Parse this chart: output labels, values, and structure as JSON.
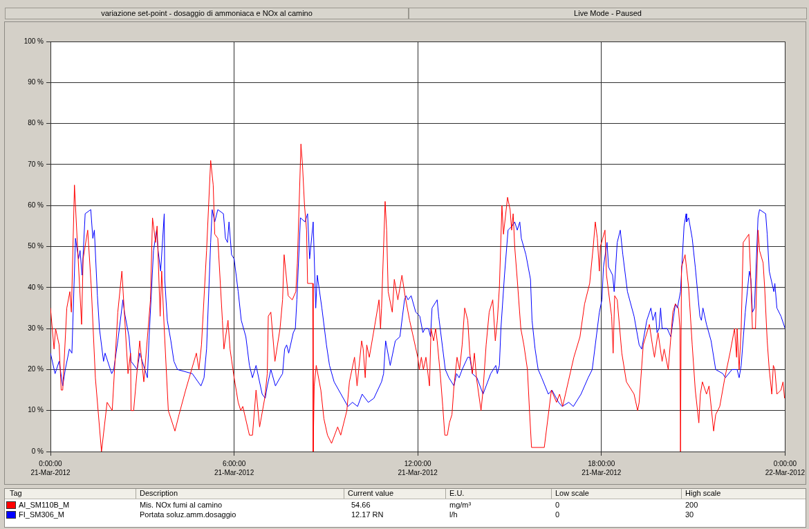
{
  "chart_data": {
    "type": "line",
    "title": "variazione set-point - dosaggio di ammoniaca e NOx al camino",
    "subtitle": "Live Mode - Paused",
    "xlim": [
      "2012-03-21T00:00",
      "2012-03-22T00:00"
    ],
    "xticks": [
      {
        "value": "2012-03-21T00:00",
        "label": "0:00:00\n21-Mar-2012"
      },
      {
        "value": "2012-03-21T06:00",
        "label": "6:00:00\n21-Mar-2012"
      },
      {
        "value": "2012-03-21T12:00",
        "label": "12:00:00\n21-Mar-2012"
      },
      {
        "value": "2012-03-21T18:00",
        "label": "18:00:00\n21-Mar-2012"
      },
      {
        "value": "2012-03-22T00:00",
        "label": "0:00:00\n22-Mar-2012"
      }
    ],
    "ylim": [
      0,
      100
    ],
    "yticks": [
      {
        "value": 0,
        "label": "0 %"
      },
      {
        "value": 10,
        "label": "10 %"
      },
      {
        "value": 20,
        "label": "20 %"
      },
      {
        "value": 30,
        "label": "30 %"
      },
      {
        "value": 40,
        "label": "40 %"
      },
      {
        "value": 50,
        "label": "50 %"
      },
      {
        "value": 60,
        "label": "60 %"
      },
      {
        "value": 70,
        "label": "70 %"
      },
      {
        "value": 80,
        "label": "80 %"
      },
      {
        "value": 90,
        "label": "90 %"
      },
      {
        "value": 100,
        "label": "100 %"
      }
    ],
    "grid": true,
    "legend": "bottom",
    "annotations": [
      "Tag",
      "Description",
      "Current value",
      "E.U.",
      "Low scale",
      "High scale",
      "Mis. NOx fumi al camino",
      "54.66",
      "mg/m³",
      "0",
      "200",
      "Portata soluz.amm.dosaggio",
      "12.17 RN",
      "l/h",
      "0",
      "30"
    ],
    "series": [
      {
        "name": "AI_SM110B_M",
        "color": "#ff0000",
        "x": [
          "2012-03-21T00:00",
          "2012-03-21T00:07",
          "2012-03-21T00:10",
          "2012-03-21T00:17",
          "2012-03-21T00:21",
          "2012-03-21T00:24",
          "2012-03-21T00:32",
          "2012-03-21T00:38",
          "2012-03-21T00:41",
          "2012-03-21T00:47",
          "2012-03-21T00:53",
          "2012-03-21T01:01",
          "2012-03-21T01:04",
          "2012-03-21T01:13",
          "2012-03-21T01:20",
          "2012-03-21T01:28",
          "2012-03-21T01:40",
          "2012-03-21T01:51",
          "2012-03-21T02:01",
          "2012-03-21T02:12",
          "2012-03-21T02:20",
          "2012-03-21T02:32",
          "2012-03-21T02:37",
          "2012-03-21T02:38",
          "2012-03-21T02:43",
          "2012-03-21T02:55",
          "2012-03-21T03:03",
          "2012-03-21T03:16",
          "2012-03-21T03:20",
          "2012-03-21T03:26",
          "2012-03-21T03:29",
          "2012-03-21T03:35",
          "2012-03-21T03:38",
          "2012-03-21T03:43",
          "2012-03-21T03:51",
          "2012-03-21T04:04",
          "2012-03-21T04:12",
          "2012-03-21T04:25",
          "2012-03-21T04:46",
          "2012-03-21T04:51",
          "2012-03-21T04:56",
          "2012-03-21T05:06",
          "2012-03-21T05:14",
          "2012-03-21T05:19",
          "2012-03-21T05:22",
          "2012-03-21T05:28",
          "2012-03-21T05:37",
          "2012-03-21T05:40",
          "2012-03-21T05:48",
          "2012-03-21T05:52",
          "2012-03-21T06:00",
          "2012-03-21T06:08",
          "2012-03-21T06:13",
          "2012-03-21T06:17",
          "2012-03-21T06:30",
          "2012-03-21T06:36",
          "2012-03-21T06:43",
          "2012-03-21T06:50",
          "2012-03-21T07:00",
          "2012-03-21T07:05",
          "2012-03-21T07:07",
          "2012-03-21T07:12",
          "2012-03-21T07:20",
          "2012-03-21T07:30",
          "2012-03-21T07:35",
          "2012-03-21T07:38",
          "2012-03-21T07:46",
          "2012-03-21T07:54",
          "2012-03-21T08:01",
          "2012-03-21T08:04",
          "2012-03-21T08:11",
          "2012-03-21T08:14",
          "2012-03-21T08:18",
          "2012-03-21T08:22",
          "2012-03-21T08:24",
          "2012-03-21T08:34",
          "2012-03-21T08:35",
          "2012-03-21T08:37",
          "2012-03-21T08:41",
          "2012-03-21T08:50",
          "2012-03-21T08:56",
          "2012-03-21T09:03",
          "2012-03-21T09:11",
          "2012-03-21T09:23",
          "2012-03-21T09:29",
          "2012-03-21T09:41",
          "2012-03-21T09:46",
          "2012-03-21T09:56",
          "2012-03-21T10:01",
          "2012-03-21T10:10",
          "2012-03-21T10:13",
          "2012-03-21T10:17",
          "2012-03-21T10:20",
          "2012-03-21T10:25",
          "2012-03-21T10:36",
          "2012-03-21T10:44",
          "2012-03-21T10:47",
          "2012-03-21T10:49",
          "2012-03-21T10:56",
          "2012-03-21T10:59",
          "2012-03-21T11:02",
          "2012-03-21T11:10",
          "2012-03-21T11:14",
          "2012-03-21T11:21",
          "2012-03-21T11:29",
          "2012-03-21T11:35",
          "2012-03-21T11:44",
          "2012-03-21T12:00",
          "2012-03-21T12:03",
          "2012-03-21T12:07",
          "2012-03-21T12:11",
          "2012-03-21T12:16",
          "2012-03-21T12:23",
          "2012-03-21T12:26",
          "2012-03-21T12:31",
          "2012-03-21T12:35",
          "2012-03-21T12:38",
          "2012-03-21T12:44",
          "2012-03-21T12:49",
          "2012-03-21T12:53",
          "2012-03-21T12:58",
          "2012-03-21T13:02",
          "2012-03-21T13:07",
          "2012-03-21T13:11",
          "2012-03-21T13:17",
          "2012-03-21T13:22",
          "2012-03-21T13:27",
          "2012-03-21T13:32",
          "2012-03-21T13:38",
          "2012-03-21T13:42",
          "2012-03-21T13:47",
          "2012-03-21T13:51",
          "2012-03-21T13:55",
          "2012-03-21T14:04",
          "2012-03-21T14:08",
          "2012-03-21T14:14",
          "2012-03-21T14:20",
          "2012-03-21T14:27",
          "2012-03-21T14:32",
          "2012-03-21T14:36",
          "2012-03-21T14:40",
          "2012-03-21T14:45",
          "2012-03-21T14:48",
          "2012-03-21T14:56",
          "2012-03-21T15:01",
          "2012-03-21T15:04",
          "2012-03-21T15:07",
          "2012-03-21T15:10",
          "2012-03-21T15:15",
          "2012-03-21T15:22",
          "2012-03-21T15:28",
          "2012-03-21T15:35",
          "2012-03-21T15:39",
          "2012-03-21T15:43",
          "2012-03-21T16:08",
          "2012-03-21T16:17",
          "2012-03-21T16:22",
          "2012-03-21T16:32",
          "2012-03-21T16:38",
          "2012-03-21T16:44",
          "2012-03-21T16:55",
          "2012-03-21T17:06",
          "2012-03-21T17:18",
          "2012-03-21T17:27",
          "2012-03-21T17:37",
          "2012-03-21T17:44",
          "2012-03-21T17:48",
          "2012-03-21T17:52",
          "2012-03-21T17:56",
          "2012-03-21T17:58",
          "2012-03-21T18:07",
          "2012-03-21T18:10",
          "2012-03-21T18:20",
          "2012-03-21T18:23",
          "2012-03-21T18:26",
          "2012-03-21T18:31",
          "2012-03-21T18:40",
          "2012-03-21T18:49",
          "2012-03-21T19:04",
          "2012-03-21T19:11",
          "2012-03-21T19:14",
          "2012-03-21T19:22",
          "2012-03-21T19:34",
          "2012-03-21T19:40",
          "2012-03-21T19:44",
          "2012-03-21T19:51",
          "2012-03-21T19:59",
          "2012-03-21T20:03",
          "2012-03-21T20:11",
          "2012-03-21T20:20",
          "2012-03-21T20:25",
          "2012-03-21T20:31",
          "2012-03-21T20:34",
          "2012-03-21T20:35",
          "2012-03-21T20:37",
          "2012-03-21T20:44",
          "2012-03-21T20:51",
          "2012-03-21T20:58",
          "2012-03-21T21:04",
          "2012-03-21T21:11",
          "2012-03-21T21:14",
          "2012-03-21T21:18",
          "2012-03-21T21:26",
          "2012-03-21T21:31",
          "2012-03-21T21:40",
          "2012-03-21T21:44",
          "2012-03-21T21:52",
          "2012-03-21T22:02",
          "2012-03-21T22:12",
          "2012-03-21T22:21",
          "2012-03-21T22:25",
          "2012-03-21T22:26",
          "2012-03-21T22:30",
          "2012-03-21T22:34",
          "2012-03-21T22:38",
          "2012-03-21T22:49",
          "2012-03-21T22:52",
          "2012-03-21T22:56",
          "2012-03-21T23:02",
          "2012-03-21T23:07",
          "2012-03-21T23:10",
          "2012-03-21T23:17",
          "2012-03-21T23:20",
          "2012-03-21T23:25",
          "2012-03-21T23:29",
          "2012-03-21T23:34",
          "2012-03-21T23:37",
          "2012-03-21T23:40",
          "2012-03-21T23:44",
          "2012-03-21T23:52",
          "2012-03-21T23:56",
          "2012-03-21T23:59"
        ],
        "values": [
          35,
          25,
          30,
          26,
          15,
          15,
          35,
          39,
          34,
          65,
          50,
          31,
          47,
          54,
          40,
          18,
          0,
          12,
          10,
          34,
          44,
          19,
          24,
          10,
          10,
          27,
          17,
          37,
          57,
          51,
          55,
          33,
          44,
          30,
          10,
          5,
          9,
          15,
          24,
          20,
          26,
          49,
          71,
          65,
          53,
          52,
          32,
          25,
          32,
          25,
          18,
          12,
          10,
          11,
          4,
          4,
          15,
          6,
          13,
          19,
          33,
          34,
          22,
          30,
          37,
          48,
          38,
          37,
          39,
          46,
          75,
          70,
          60,
          54,
          41,
          41,
          0,
          16,
          21,
          15,
          8,
          4,
          2,
          6,
          4,
          10,
          17,
          23,
          16,
          27,
          25,
          18,
          26,
          23,
          31,
          37,
          30,
          35,
          61,
          54,
          39,
          34,
          42,
          37,
          43,
          38,
          32,
          23,
          20,
          23,
          20,
          23,
          16,
          30,
          27,
          30,
          27,
          19,
          11,
          4,
          4,
          7,
          9,
          16,
          23,
          20,
          26,
          35,
          32,
          24,
          19,
          24,
          18,
          10,
          15,
          26,
          34,
          37,
          27,
          32,
          40,
          60,
          53,
          62,
          59,
          54,
          58,
          50,
          42,
          30,
          26,
          20,
          10,
          1,
          1,
          10,
          15,
          12,
          14,
          11,
          17,
          23,
          28,
          36,
          41,
          50,
          56,
          52,
          44,
          50,
          54,
          43,
          33,
          24,
          38,
          37,
          24,
          17,
          14,
          10,
          12,
          26,
          31,
          26,
          23,
          29,
          22,
          25,
          20,
          34,
          36,
          35,
          30,
          0,
          45,
          48,
          40,
          26,
          15,
          7,
          14,
          17,
          14,
          16,
          5,
          9,
          11,
          18,
          24,
          30,
          23,
          30,
          20,
          30,
          51,
          53,
          45,
          30,
          30,
          54,
          49,
          46,
          40,
          27,
          20,
          14,
          21,
          20,
          14,
          15,
          17,
          13
        ]
      },
      {
        "name": "FI_SM306_M",
        "color": "#0000ff",
        "x": [
          "2012-03-21T00:00",
          "2012-03-21T00:09",
          "2012-03-21T00:17",
          "2012-03-21T00:24",
          "2012-03-21T00:29",
          "2012-03-21T00:37",
          "2012-03-21T00:42",
          "2012-03-21T00:49",
          "2012-03-21T00:55",
          "2012-03-21T00:58",
          "2012-03-21T01:02",
          "2012-03-21T01:08",
          "2012-03-21T01:19",
          "2012-03-21T01:23",
          "2012-03-21T01:26",
          "2012-03-21T01:32",
          "2012-03-21T01:36",
          "2012-03-21T01:44",
          "2012-03-21T01:47",
          "2012-03-21T02:00",
          "2012-03-21T02:04",
          "2012-03-21T02:12",
          "2012-03-21T02:22",
          "2012-03-21T02:25",
          "2012-03-21T02:34",
          "2012-03-21T02:38",
          "2012-03-21T02:50",
          "2012-03-21T02:55",
          "2012-03-21T03:10",
          "2012-03-21T03:13",
          "2012-03-21T03:22",
          "2012-03-21T03:28",
          "2012-03-21T03:31",
          "2012-03-21T03:36",
          "2012-03-21T03:43",
          "2012-03-21T03:44",
          "2012-03-21T03:49",
          "2012-03-21T03:56",
          "2012-03-21T04:02",
          "2012-03-21T04:09",
          "2012-03-21T04:38",
          "2012-03-21T04:55",
          "2012-03-21T05:01",
          "2012-03-21T05:06",
          "2012-03-21T05:14",
          "2012-03-21T05:17",
          "2012-03-21T05:22",
          "2012-03-21T05:28",
          "2012-03-21T05:39",
          "2012-03-21T05:43",
          "2012-03-21T05:47",
          "2012-03-21T05:50",
          "2012-03-21T05:55",
          "2012-03-21T06:00",
          "2012-03-21T06:08",
          "2012-03-21T06:14",
          "2012-03-21T06:23",
          "2012-03-21T06:30",
          "2012-03-21T06:36",
          "2012-03-21T06:43",
          "2012-03-21T06:55",
          "2012-03-21T07:01",
          "2012-03-21T07:05",
          "2012-03-21T07:12",
          "2012-03-21T07:21",
          "2012-03-21T07:30",
          "2012-03-21T07:35",
          "2012-03-21T07:39",
          "2012-03-21T07:43",
          "2012-03-21T07:47",
          "2012-03-21T07:56",
          "2012-03-21T08:00",
          "2012-03-21T08:03",
          "2012-03-21T08:10",
          "2012-03-21T08:19",
          "2012-03-21T08:24",
          "2012-03-21T08:28",
          "2012-03-21T08:35",
          "2012-03-21T08:40",
          "2012-03-21T08:43",
          "2012-03-21T08:52",
          "2012-03-21T09:01",
          "2012-03-21T09:07",
          "2012-03-21T09:16",
          "2012-03-21T09:25",
          "2012-03-21T09:43",
          "2012-03-21T09:52",
          "2012-03-21T10:02",
          "2012-03-21T10:11",
          "2012-03-21T10:23",
          "2012-03-21T10:34",
          "2012-03-21T10:49",
          "2012-03-21T10:53",
          "2012-03-21T10:57",
          "2012-03-21T11:06",
          "2012-03-21T11:16",
          "2012-03-21T11:25",
          "2012-03-21T11:34",
          "2012-03-21T11:37",
          "2012-03-21T11:41",
          "2012-03-21T11:47",
          "2012-03-21T11:56",
          "2012-03-21T12:04",
          "2012-03-21T12:10",
          "2012-03-21T12:14",
          "2012-03-21T12:21",
          "2012-03-21T12:25",
          "2012-03-21T12:28",
          "2012-03-21T12:38",
          "2012-03-21T12:41",
          "2012-03-21T12:49",
          "2012-03-21T12:54",
          "2012-03-21T13:01",
          "2012-03-21T13:11",
          "2012-03-21T13:16",
          "2012-03-21T13:21",
          "2012-03-21T13:27",
          "2012-03-21T13:38",
          "2012-03-21T13:42",
          "2012-03-21T13:47",
          "2012-03-21T13:56",
          "2012-03-21T14:08",
          "2012-03-21T14:17",
          "2012-03-21T14:23",
          "2012-03-21T14:33",
          "2012-03-21T14:36",
          "2012-03-21T14:40",
          "2012-03-21T14:43",
          "2012-03-21T14:50",
          "2012-03-21T14:57",
          "2012-03-21T15:05",
          "2012-03-21T15:10",
          "2012-03-21T15:15",
          "2012-03-21T15:20",
          "2012-03-21T15:23",
          "2012-03-21T15:32",
          "2012-03-21T15:41",
          "2012-03-21T15:44",
          "2012-03-21T15:50",
          "2012-03-21T15:56",
          "2012-03-21T16:03",
          "2012-03-21T16:16",
          "2012-03-21T16:23",
          "2012-03-21T16:36",
          "2012-03-21T16:43",
          "2012-03-21T16:56",
          "2012-03-21T17:05",
          "2012-03-21T17:20",
          "2012-03-21T17:34",
          "2012-03-21T17:42",
          "2012-03-21T17:51",
          "2012-03-21T17:56",
          "2012-03-21T18:01",
          "2012-03-21T18:04",
          "2012-03-21T18:11",
          "2012-03-21T18:14",
          "2012-03-21T18:22",
          "2012-03-21T18:25",
          "2012-03-21T18:31",
          "2012-03-21T18:37",
          "2012-03-21T18:42",
          "2012-03-21T18:51",
          "2012-03-21T19:04",
          "2012-03-21T19:14",
          "2012-03-21T19:19",
          "2012-03-21T19:29",
          "2012-03-21T19:37",
          "2012-03-21T19:41",
          "2012-03-21T19:46",
          "2012-03-21T19:49",
          "2012-03-21T19:53",
          "2012-03-21T19:56",
          "2012-03-21T19:59",
          "2012-03-21T20:09",
          "2012-03-21T20:16",
          "2012-03-21T20:25",
          "2012-03-21T20:29",
          "2012-03-21T20:35",
          "2012-03-21T20:42",
          "2012-03-21T20:46",
          "2012-03-21T20:47",
          "2012-03-21T20:51",
          "2012-03-21T20:58",
          "2012-03-21T21:04",
          "2012-03-21T21:13",
          "2012-03-21T21:16",
          "2012-03-21T21:19",
          "2012-03-21T21:26",
          "2012-03-21T21:35",
          "2012-03-21T21:44",
          "2012-03-21T21:58",
          "2012-03-21T22:03",
          "2012-03-21T22:16",
          "2012-03-21T22:26",
          "2012-03-21T22:30",
          "2012-03-21T22:34",
          "2012-03-21T22:42",
          "2012-03-21T22:50",
          "2012-03-21T22:53",
          "2012-03-21T22:56",
          "2012-03-21T23:00",
          "2012-03-21T23:07",
          "2012-03-21T23:10",
          "2012-03-21T23:22",
          "2012-03-21T23:25",
          "2012-03-21T23:29",
          "2012-03-21T23:38",
          "2012-03-21T23:40",
          "2012-03-21T23:44",
          "2012-03-21T23:52",
          "2012-03-22T00:00"
        ],
        "values": [
          24,
          19,
          22,
          16,
          20,
          25,
          24,
          52,
          47,
          49,
          43,
          58,
          59,
          52,
          54,
          38,
          30,
          22,
          24,
          19,
          20,
          27,
          37,
          34,
          28,
          22,
          20,
          24,
          18,
          27,
          49,
          54,
          49,
          44,
          58,
          42,
          32,
          27,
          22,
          20,
          19,
          16,
          18,
          25,
          51,
          59,
          56,
          59,
          58,
          52,
          51,
          56,
          48,
          47,
          39,
          32,
          28,
          21,
          18,
          21,
          14,
          13,
          16,
          20,
          16,
          18,
          19,
          25,
          26,
          24,
          29,
          30,
          37,
          57,
          56,
          58,
          47,
          56,
          35,
          43,
          35,
          26,
          21,
          17,
          15,
          11,
          12,
          11,
          14,
          12,
          13,
          17,
          19,
          27,
          21,
          27,
          28,
          37,
          38,
          37,
          38,
          34,
          33,
          29,
          30,
          30,
          28,
          35,
          37,
          33,
          25,
          20,
          18,
          16,
          19,
          18,
          20,
          23,
          23,
          19,
          18,
          14,
          17,
          19,
          21,
          19,
          21,
          30,
          43,
          54,
          55,
          56,
          54,
          56,
          52,
          48,
          42,
          32,
          25,
          20,
          18,
          14,
          15,
          12,
          11,
          12,
          11,
          14,
          18,
          20,
          29,
          34,
          37,
          45,
          51,
          45,
          43,
          39,
          51,
          54,
          48,
          39,
          33,
          26,
          25,
          32,
          35,
          32,
          34,
          29,
          30,
          35,
          30,
          30,
          28,
          36,
          35,
          39,
          55,
          58,
          56,
          57,
          52,
          45,
          33,
          32,
          35,
          31,
          27,
          20,
          19,
          18,
          20,
          20,
          18,
          21,
          34,
          44,
          42,
          34,
          35,
          57,
          59,
          58,
          53,
          44,
          39,
          41,
          35,
          33,
          30
        ]
      }
    ]
  }
}
